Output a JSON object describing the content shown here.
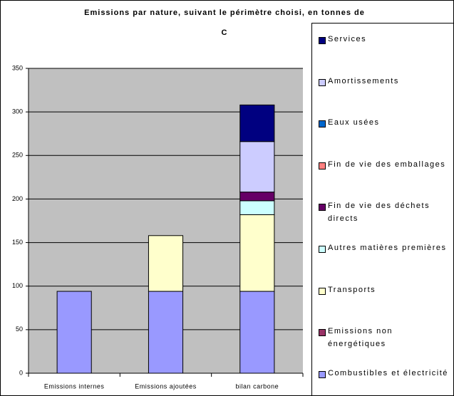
{
  "chart_data": {
    "type": "stacked_bar",
    "title_lines": [
      "Emissions par nature, suivant le périmètre choisi, en tonnes de",
      "C"
    ],
    "categories": [
      "Emissions internes",
      "Emissions ajoutées",
      "bilan carbone"
    ],
    "series": [
      {
        "name": "Combustibles et électricité",
        "color": "#9999ff",
        "values": [
          94,
          94,
          94
        ]
      },
      {
        "name": "Emissions non énergétiques",
        "color": "#993366",
        "values": [
          0,
          0,
          0
        ]
      },
      {
        "name": "Transports",
        "color": "#ffffcc",
        "values": [
          0,
          64,
          88
        ]
      },
      {
        "name": "Autres matières premières",
        "color": "#ccffff",
        "values": [
          0,
          0,
          16
        ]
      },
      {
        "name": "Fin de vie des déchets directs",
        "color": "#660066",
        "values": [
          0,
          0,
          10
        ]
      },
      {
        "name": "Fin de vie des emballages",
        "color": "#ff8080",
        "values": [
          0,
          0,
          0
        ]
      },
      {
        "name": "Eaux usées",
        "color": "#0066cc",
        "values": [
          0,
          0,
          0
        ]
      },
      {
        "name": "Amortissements",
        "color": "#ccccff",
        "values": [
          0,
          0,
          58
        ]
      },
      {
        "name": "Services",
        "color": "#000080",
        "values": [
          0,
          0,
          42
        ]
      }
    ],
    "ylim": [
      0,
      350
    ],
    "yticks": [
      0,
      50,
      100,
      150,
      200,
      250,
      300,
      350
    ],
    "grid": true,
    "plot_background": "#c0c0c0",
    "legend": "right"
  }
}
